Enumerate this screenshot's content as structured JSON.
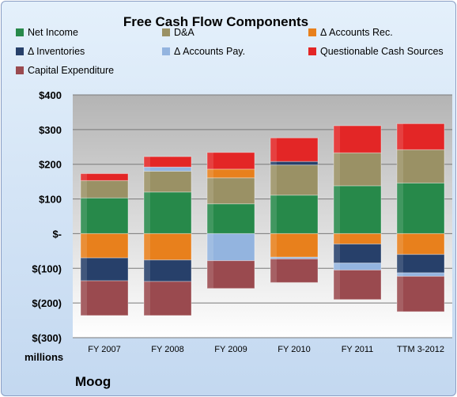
{
  "chart_data": {
    "type": "bar",
    "stacked": true,
    "title": "Free Cash Flow Components",
    "units_label": "millions",
    "footer": "Moog",
    "categories": [
      "FY 2007",
      "FY 2008",
      "FY 2009",
      "FY 2010",
      "FY 2011",
      "TTM 3-2012"
    ],
    "ylim": [
      -300,
      400
    ],
    "yticks": [
      {
        "value": 400,
        "label": "$400"
      },
      {
        "value": 300,
        "label": "$300"
      },
      {
        "value": 200,
        "label": "$200"
      },
      {
        "value": 100,
        "label": "$100"
      },
      {
        "value": 0,
        "label": "$-"
      },
      {
        "value": -100,
        "label": "$(100)"
      },
      {
        "value": -200,
        "label": "$(200)"
      },
      {
        "value": -300,
        "label": "$(300)"
      }
    ],
    "grid": true,
    "legend_position": "top",
    "series": [
      {
        "name": "Net Income",
        "color": "#27894a",
        "values": [
          103,
          120,
          86,
          111,
          138,
          146
        ]
      },
      {
        "name": "D&A",
        "color": "#9a9165",
        "values": [
          50,
          60,
          75,
          87,
          95,
          96
        ]
      },
      {
        "name": "Δ Accounts Rec.",
        "color": "#e8801c",
        "values": [
          -70,
          -76,
          25,
          -68,
          -30,
          -60
        ]
      },
      {
        "name": "Δ Inventories",
        "color": "#27406a",
        "values": [
          -66,
          -62,
          0,
          10,
          -55,
          -53
        ]
      },
      {
        "name": "Δ Accounts Pay.",
        "color": "#93b4df",
        "values": [
          0,
          12,
          -78,
          -5,
          -20,
          -10
        ]
      },
      {
        "name": "Questionable Cash Sources",
        "color": "#e32626",
        "values": [
          20,
          30,
          48,
          68,
          78,
          75
        ]
      },
      {
        "name": "Capital Expenditure",
        "color": "#9a4a4f",
        "values": [
          -100,
          -98,
          -80,
          -68,
          -85,
          -102
        ]
      }
    ]
  }
}
